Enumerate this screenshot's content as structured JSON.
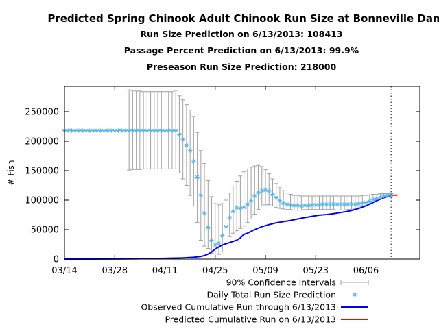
{
  "chart_data": {
    "type": "line",
    "title": "Predicted Spring Chinook Adult Chinook Run Size at Bonneville Dam",
    "subtitle_lines": [
      "Run Size Prediction on 6/13/2013: 108413",
      "Passage Percent Prediction on 6/13/2013: 99.9%",
      "Preseason Run Size Prediction: 218000"
    ],
    "xlabel": "",
    "ylabel": "# Fish",
    "x_tick_labels": [
      "03/14",
      "03/28",
      "04/11",
      "04/25",
      "05/09",
      "05/23",
      "06/06"
    ],
    "y_tick_labels": [
      "0",
      "50000",
      "100000",
      "150000",
      "200000",
      "250000"
    ],
    "xlim": [
      "03/14",
      "06/21"
    ],
    "ylim": [
      0,
      293000
    ],
    "prediction_date": "06/13",
    "grid": false,
    "legend_position": "bottom-right",
    "colors": {
      "ci": "#a0a0a0",
      "prediction": "#56b4e9",
      "observed": "#0000ff",
      "predicted_cumulative": "#ff0000"
    },
    "legend": [
      {
        "label": "90% Confidence Intervals",
        "style": "errorbar",
        "color": "#a0a0a0"
      },
      {
        "label": "Daily Total Run Size Prediction",
        "style": "star",
        "color": "#56b4e9"
      },
      {
        "label": "Observed Cumulative Run through 6/13/2013",
        "style": "line",
        "color": "#0000ff"
      },
      {
        "label": "Predicted Cumulative Run on 6/13/2013",
        "style": "line",
        "color": "#ff0000"
      }
    ],
    "series": [
      {
        "name": "Daily Total Run Size Prediction",
        "points": [
          [
            "03/14",
            218000
          ],
          [
            "03/15",
            218000
          ],
          [
            "03/16",
            218000
          ],
          [
            "03/17",
            218000
          ],
          [
            "03/18",
            218000
          ],
          [
            "03/19",
            218000
          ],
          [
            "03/20",
            218000
          ],
          [
            "03/21",
            218000
          ],
          [
            "03/22",
            218000
          ],
          [
            "03/23",
            218000
          ],
          [
            "03/24",
            218000
          ],
          [
            "03/25",
            218000
          ],
          [
            "03/26",
            218000
          ],
          [
            "03/27",
            218000
          ],
          [
            "03/28",
            218000
          ],
          [
            "03/29",
            218000
          ],
          [
            "03/30",
            218000
          ],
          [
            "03/31",
            218000
          ],
          [
            "04/01",
            218000
          ],
          [
            "04/02",
            218000
          ],
          [
            "04/03",
            218000
          ],
          [
            "04/04",
            218000
          ],
          [
            "04/05",
            218000
          ],
          [
            "04/06",
            218000
          ],
          [
            "04/07",
            218000
          ],
          [
            "04/08",
            218000
          ],
          [
            "04/09",
            218000
          ],
          [
            "04/10",
            218000
          ],
          [
            "04/11",
            218000
          ],
          [
            "04/12",
            218000
          ],
          [
            "04/13",
            218000
          ],
          [
            "04/14",
            218000
          ],
          [
            "04/15",
            211000
          ],
          [
            "04/16",
            203000
          ],
          [
            "04/17",
            193000
          ],
          [
            "04/18",
            184000
          ],
          [
            "04/19",
            166000
          ],
          [
            "04/20",
            139000
          ],
          [
            "04/21",
            108000
          ],
          [
            "04/22",
            78000
          ],
          [
            "04/23",
            54000
          ],
          [
            "04/24",
            32000
          ],
          [
            "04/25",
            24000
          ],
          [
            "04/26",
            27000
          ],
          [
            "04/27",
            40000
          ],
          [
            "04/28",
            55000
          ],
          [
            "04/29",
            70000
          ],
          [
            "04/30",
            81000
          ],
          [
            "05/01",
            87000
          ],
          [
            "05/02",
            86000
          ],
          [
            "05/03",
            88000
          ],
          [
            "05/04",
            93000
          ],
          [
            "05/05",
            99000
          ],
          [
            "05/06",
            107000
          ],
          [
            "05/07",
            113000
          ],
          [
            "05/08",
            116000
          ],
          [
            "05/09",
            117000
          ],
          [
            "05/10",
            115000
          ],
          [
            "05/11",
            110000
          ],
          [
            "05/12",
            104000
          ],
          [
            "05/13",
            99000
          ],
          [
            "05/14",
            95000
          ],
          [
            "05/15",
            93000
          ],
          [
            "05/16",
            92000
          ],
          [
            "05/17",
            91000
          ],
          [
            "05/18",
            91000
          ],
          [
            "05/19",
            90000
          ],
          [
            "05/20",
            91000
          ],
          [
            "05/21",
            91000
          ],
          [
            "05/22",
            92000
          ],
          [
            "05/23",
            92000
          ],
          [
            "05/24",
            92000
          ],
          [
            "05/25",
            93000
          ],
          [
            "05/26",
            93000
          ],
          [
            "05/27",
            93000
          ],
          [
            "05/28",
            93000
          ],
          [
            "05/29",
            93000
          ],
          [
            "05/30",
            93000
          ],
          [
            "05/31",
            93000
          ],
          [
            "06/01",
            93000
          ],
          [
            "06/02",
            93000
          ],
          [
            "06/03",
            93000
          ],
          [
            "06/04",
            94000
          ],
          [
            "06/05",
            95000
          ],
          [
            "06/06",
            96000
          ],
          [
            "06/07",
            98000
          ],
          [
            "06/08",
            101000
          ],
          [
            "06/09",
            103000
          ],
          [
            "06/10",
            105000
          ],
          [
            "06/11",
            107000
          ],
          [
            "06/12",
            108000
          ],
          [
            "06/13",
            108413
          ]
        ]
      },
      {
        "name": "90% Confidence Intervals",
        "intervals": [
          [
            "04/01",
            151000,
            287000
          ],
          [
            "04/02",
            152000,
            286000
          ],
          [
            "04/03",
            152000,
            285000
          ],
          [
            "04/04",
            152000,
            285000
          ],
          [
            "04/05",
            153000,
            284000
          ],
          [
            "04/06",
            153000,
            284000
          ],
          [
            "04/07",
            153000,
            284000
          ],
          [
            "04/08",
            153000,
            284000
          ],
          [
            "04/09",
            153000,
            284000
          ],
          [
            "04/10",
            153000,
            284000
          ],
          [
            "04/11",
            153000,
            284000
          ],
          [
            "04/12",
            153000,
            284000
          ],
          [
            "04/13",
            153000,
            284000
          ],
          [
            "04/14",
            153000,
            286000
          ],
          [
            "04/15",
            146000,
            277000
          ],
          [
            "04/16",
            136000,
            270000
          ],
          [
            "04/17",
            125000,
            262000
          ],
          [
            "04/18",
            108000,
            253000
          ],
          [
            "04/19",
            90000,
            242000
          ],
          [
            "04/20",
            62000,
            215000
          ],
          [
            "04/21",
            32000,
            184000
          ],
          [
            "04/22",
            22000,
            162000
          ],
          [
            "04/23",
            18000,
            133000
          ],
          [
            "04/24",
            10000,
            106000
          ],
          [
            "04/25",
            5000,
            94000
          ],
          [
            "04/26",
            8000,
            92000
          ],
          [
            "04/27",
            12000,
            94000
          ],
          [
            "04/28",
            26000,
            100000
          ],
          [
            "04/29",
            38000,
            112000
          ],
          [
            "04/30",
            44000,
            124000
          ],
          [
            "05/01",
            48000,
            132000
          ],
          [
            "05/02",
            52000,
            141000
          ],
          [
            "05/03",
            56000,
            148000
          ],
          [
            "05/04",
            62000,
            153000
          ],
          [
            "05/05",
            68000,
            156000
          ],
          [
            "05/06",
            76000,
            158000
          ],
          [
            "05/07",
            84000,
            159000
          ],
          [
            "05/08",
            90000,
            157000
          ],
          [
            "05/09",
            92000,
            152000
          ],
          [
            "05/10",
            92000,
            145000
          ],
          [
            "05/11",
            90000,
            136000
          ],
          [
            "05/12",
            88000,
            128000
          ],
          [
            "05/13",
            86000,
            121000
          ],
          [
            "05/14",
            85000,
            116000
          ],
          [
            "05/15",
            84000,
            112000
          ],
          [
            "05/16",
            84000,
            110000
          ],
          [
            "05/17",
            83000,
            108000
          ],
          [
            "05/18",
            83000,
            108000
          ],
          [
            "05/19",
            83000,
            107000
          ],
          [
            "05/20",
            84000,
            107000
          ],
          [
            "05/21",
            84000,
            107000
          ],
          [
            "05/22",
            84000,
            107000
          ],
          [
            "05/23",
            84000,
            107000
          ],
          [
            "05/24",
            84000,
            107000
          ],
          [
            "05/25",
            84000,
            107000
          ],
          [
            "05/26",
            84000,
            107000
          ],
          [
            "05/27",
            84000,
            107000
          ],
          [
            "05/28",
            84000,
            107000
          ],
          [
            "05/29",
            83000,
            107000
          ],
          [
            "05/30",
            83000,
            107000
          ],
          [
            "05/31",
            83000,
            107000
          ],
          [
            "06/01",
            84000,
            107000
          ],
          [
            "06/02",
            84000,
            107000
          ],
          [
            "06/03",
            85000,
            107000
          ],
          [
            "06/04",
            87000,
            107000
          ],
          [
            "06/05",
            89000,
            108000
          ],
          [
            "06/06",
            91000,
            108000
          ],
          [
            "06/07",
            94000,
            109000
          ],
          [
            "06/08",
            97000,
            110000
          ],
          [
            "06/09",
            100000,
            110000
          ],
          [
            "06/10",
            102000,
            111000
          ],
          [
            "06/11",
            104000,
            111000
          ],
          [
            "06/12",
            105000,
            111000
          ],
          [
            "06/13",
            106000,
            111000
          ]
        ]
      },
      {
        "name": "Observed Cumulative Run through 6/13/2013",
        "points": [
          [
            "03/14",
            0
          ],
          [
            "03/28",
            150
          ],
          [
            "04/03",
            500
          ],
          [
            "04/11",
            1300
          ],
          [
            "04/16",
            2000
          ],
          [
            "04/19",
            3000
          ],
          [
            "04/21",
            4500
          ],
          [
            "04/22",
            6000
          ],
          [
            "04/23",
            8500
          ],
          [
            "04/24",
            12000
          ],
          [
            "04/25",
            17000
          ],
          [
            "04/27",
            24000
          ],
          [
            "04/29",
            28000
          ],
          [
            "05/01",
            32000
          ],
          [
            "05/02",
            36000
          ],
          [
            "05/03",
            42000
          ],
          [
            "05/04",
            44000
          ],
          [
            "05/06",
            50000
          ],
          [
            "05/08",
            55000
          ],
          [
            "05/10",
            58500
          ],
          [
            "05/12",
            61500
          ],
          [
            "05/14",
            63500
          ],
          [
            "05/16",
            65500
          ],
          [
            "05/18",
            68000
          ],
          [
            "05/20",
            70500
          ],
          [
            "05/22",
            72500
          ],
          [
            "05/24",
            74500
          ],
          [
            "05/26",
            75500
          ],
          [
            "05/28",
            77000
          ],
          [
            "05/30",
            79000
          ],
          [
            "06/01",
            81000
          ],
          [
            "06/03",
            84000
          ],
          [
            "06/05",
            88000
          ],
          [
            "06/07",
            93000
          ],
          [
            "06/09",
            99000
          ],
          [
            "06/11",
            104000
          ],
          [
            "06/13",
            108000
          ]
        ]
      },
      {
        "name": "Predicted Cumulative Run on 6/13/2013",
        "points": [
          [
            "06/13",
            108413
          ],
          [
            "06/14",
            108413
          ]
        ]
      }
    ]
  }
}
